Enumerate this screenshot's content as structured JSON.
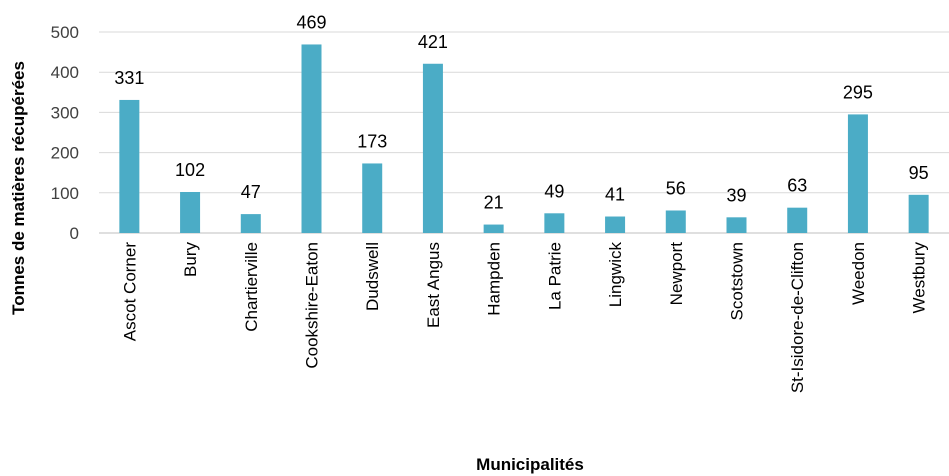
{
  "chart_data": {
    "type": "bar",
    "categories": [
      "Ascot Corner",
      "Bury",
      "Chartierville",
      "Cookshire-Eaton",
      "Dudswell",
      "East Angus",
      "Hampden",
      "La Patrie",
      "Lingwick",
      "Newport",
      "Scotstown",
      "St-Isidore-de-Clifton",
      "Weedon",
      "Westbury"
    ],
    "values": [
      331,
      102,
      47,
      469,
      173,
      421,
      21,
      49,
      41,
      56,
      39,
      63,
      295,
      95
    ],
    "xlabel": "Municipalités",
    "ylabel": "Tonnes de matières récupérées",
    "ylim": [
      0,
      500
    ],
    "yticks": [
      0,
      100,
      200,
      300,
      400,
      500
    ],
    "grid": true,
    "legend": "none",
    "bar_color": "#4bacc6"
  }
}
